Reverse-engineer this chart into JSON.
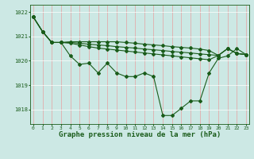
{
  "title": "Graphe pression niveau de la mer (hPa)",
  "bg_color": "#cce8e4",
  "line_color": "#1a5c1a",
  "grid_color_v": "#e8a0a0",
  "xlim": [
    -0.3,
    23.3
  ],
  "ylim": [
    1017.4,
    1022.3
  ],
  "yticks": [
    1018,
    1019,
    1020,
    1021,
    1022
  ],
  "xticks": [
    0,
    1,
    2,
    3,
    4,
    5,
    6,
    7,
    8,
    9,
    10,
    11,
    12,
    13,
    14,
    15,
    16,
    17,
    18,
    19,
    20,
    21,
    22,
    23
  ],
  "s1": [
    1021.8,
    1021.2,
    1020.75,
    1020.75,
    1020.2,
    1019.85,
    1019.9,
    1019.5,
    1019.9,
    1019.5,
    1019.35,
    1019.35,
    1019.5,
    1019.35,
    1017.75,
    1017.75,
    1018.05,
    1018.35,
    1018.35,
    1019.5,
    1020.1,
    1020.2,
    1020.5,
    1020.25
  ],
  "s2": [
    1021.8,
    1021.2,
    1020.75,
    1020.75,
    1020.75,
    1020.72,
    1020.68,
    1020.65,
    1020.62,
    1020.58,
    1020.55,
    1020.52,
    1020.48,
    1020.45,
    1020.42,
    1020.38,
    1020.35,
    1020.32,
    1020.28,
    1020.25,
    1020.22,
    1020.5,
    1020.3,
    1020.25
  ],
  "s3": [
    1021.8,
    1021.2,
    1020.75,
    1020.75,
    1020.72,
    1020.65,
    1020.58,
    1020.52,
    1020.48,
    1020.44,
    1020.4,
    1020.36,
    1020.32,
    1020.28,
    1020.24,
    1020.2,
    1020.16,
    1020.12,
    1020.08,
    1020.04,
    1020.22,
    1020.5,
    1020.3,
    1020.25
  ],
  "s4": [
    1021.8,
    1021.2,
    1020.75,
    1020.75,
    1020.78,
    1020.78,
    1020.78,
    1020.78,
    1020.78,
    1020.78,
    1020.75,
    1020.72,
    1020.68,
    1020.65,
    1020.62,
    1020.58,
    1020.55,
    1020.52,
    1020.48,
    1020.42,
    1020.22,
    1020.5,
    1020.3,
    1020.25
  ],
  "markersize": 2.0,
  "linewidth": 0.8
}
